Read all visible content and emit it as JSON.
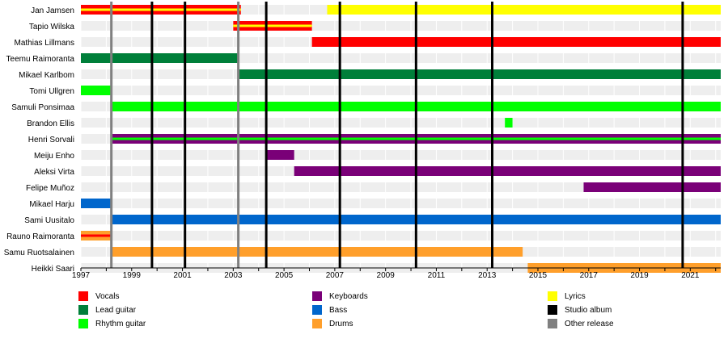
{
  "chart_data": {
    "type": "timeline",
    "x_range": [
      1997,
      2022.2
    ],
    "x_ticks": [
      "1997",
      "1999",
      "2001",
      "2003",
      "2005",
      "2007",
      "2009",
      "2011",
      "2013",
      "2015",
      "2017",
      "2019",
      "2021"
    ],
    "colors": {
      "vocals": "#ff0000",
      "lead_guitar": "#007f3a",
      "rhythm_guitar": "#00ff00",
      "keyboards": "#7a0078",
      "bass": "#0066cc",
      "drums": "#ff9f2b",
      "lyrics": "#ffff00",
      "studio_album": "#000000",
      "other_release": "#808080"
    },
    "members": [
      {
        "name": "Jan Jamsen",
        "bars": [
          {
            "start": 1997,
            "end": 2003.3,
            "role": "vocals",
            "overlay": "lyrics"
          },
          {
            "start": 2006.7,
            "end": 2022.2,
            "role": "lyrics"
          }
        ]
      },
      {
        "name": "Tapio Wilska",
        "bars": [
          {
            "start": 2003.0,
            "end": 2006.1,
            "role": "vocals",
            "overlay": "lyrics"
          }
        ]
      },
      {
        "name": "Mathias Lillmans",
        "bars": [
          {
            "start": 2006.1,
            "end": 2022.2,
            "role": "vocals"
          }
        ]
      },
      {
        "name": "Teemu Raimoranta",
        "bars": [
          {
            "start": 1997,
            "end": 2003.2,
            "role": "lead_guitar"
          }
        ]
      },
      {
        "name": "Mikael Karlbom",
        "bars": [
          {
            "start": 2003.2,
            "end": 2022.2,
            "role": "lead_guitar"
          }
        ]
      },
      {
        "name": "Tomi Ullgren",
        "bars": [
          {
            "start": 1997,
            "end": 1998.2,
            "role": "rhythm_guitar"
          }
        ]
      },
      {
        "name": "Samuli Ponsimaa",
        "bars": [
          {
            "start": 1998.2,
            "end": 2022.2,
            "role": "rhythm_guitar"
          }
        ]
      },
      {
        "name": "Brandon Ellis",
        "bars": [
          {
            "start": 2013.7,
            "end": 2014.0,
            "role": "rhythm_guitar"
          }
        ]
      },
      {
        "name": "Henri Sorvali",
        "bars": [
          {
            "start": 1998.2,
            "end": 2022.2,
            "role": "keyboards",
            "overlay": "rhythm_guitar"
          }
        ]
      },
      {
        "name": "Meiju Enho",
        "bars": [
          {
            "start": 2004.3,
            "end": 2005.4,
            "role": "keyboards"
          }
        ]
      },
      {
        "name": "Aleksi Virta",
        "bars": [
          {
            "start": 2005.4,
            "end": 2022.2,
            "role": "keyboards"
          }
        ]
      },
      {
        "name": "Felipe Muñoz",
        "bars": [
          {
            "start": 2016.8,
            "end": 2022.2,
            "role": "keyboards"
          }
        ]
      },
      {
        "name": "Mikael Harju",
        "bars": [
          {
            "start": 1997,
            "end": 1998.2,
            "role": "bass"
          }
        ]
      },
      {
        "name": "Sami Uusitalo",
        "bars": [
          {
            "start": 1998.2,
            "end": 2022.2,
            "role": "bass"
          }
        ]
      },
      {
        "name": "Rauno Raimoranta",
        "bars": [
          {
            "start": 1997,
            "end": 1998.2,
            "role": "drums",
            "overlay": "vocals"
          }
        ]
      },
      {
        "name": "Samu Ruotsalainen",
        "bars": [
          {
            "start": 1998.2,
            "end": 2014.4,
            "role": "drums"
          }
        ]
      },
      {
        "name": "Heikki Saari",
        "bars": [
          {
            "start": 2014.6,
            "end": 2022.2,
            "role": "drums"
          }
        ]
      }
    ],
    "studio_albums": [
      1999.8,
      2001.1,
      2004.3,
      2007.2,
      2010.2,
      2013.2,
      2020.7
    ],
    "other_releases": [
      1998.2,
      2003.2
    ],
    "legend": [
      {
        "label": "Vocals",
        "color_key": "vocals",
        "col": 0,
        "row": 0
      },
      {
        "label": "Lead guitar",
        "color_key": "lead_guitar",
        "col": 0,
        "row": 1
      },
      {
        "label": "Rhythm guitar",
        "color_key": "rhythm_guitar",
        "col": 0,
        "row": 2
      },
      {
        "label": "Keyboards",
        "color_key": "keyboards",
        "col": 1,
        "row": 0
      },
      {
        "label": "Bass",
        "color_key": "bass",
        "col": 1,
        "row": 1
      },
      {
        "label": "Drums",
        "color_key": "drums",
        "col": 1,
        "row": 2
      },
      {
        "label": "Lyrics",
        "color_key": "lyrics",
        "col": 2,
        "row": 0
      },
      {
        "label": "Studio album",
        "color_key": "studio_album",
        "col": 2,
        "row": 1
      },
      {
        "label": "Other release",
        "color_key": "other_release",
        "col": 2,
        "row": 2
      }
    ]
  }
}
